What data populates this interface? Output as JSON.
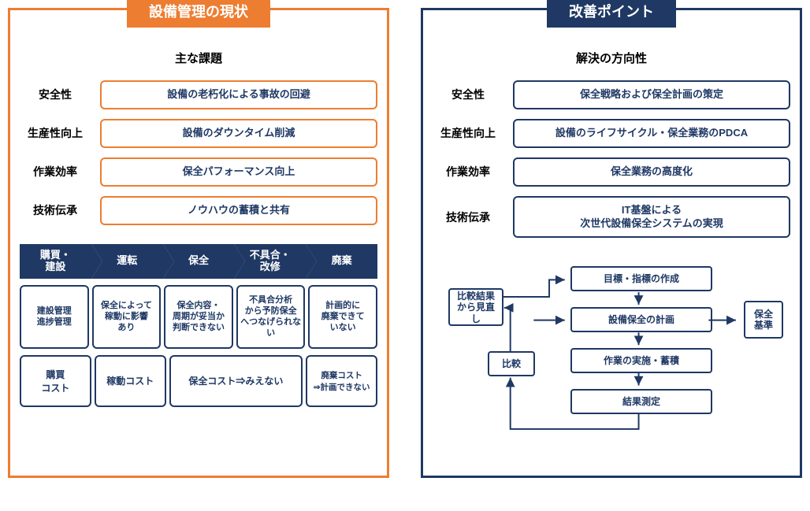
{
  "colors": {
    "orange": "#ed7d31",
    "navy": "#1f3864",
    "navy_border": "#203864",
    "box_border_navy": "#203864",
    "black": "#000000"
  },
  "left": {
    "title": "設備管理の現状",
    "section": "主な課題",
    "rows": [
      {
        "label": "安全性",
        "text": "設備の老朽化による事故の回避"
      },
      {
        "label": "生産性向上",
        "text": "設備のダウンタイム削減"
      },
      {
        "label": "作業効率",
        "text": "保全パフォーマンス向上"
      },
      {
        "label": "技術伝承",
        "text": "ノウハウの蓄積と共有"
      }
    ],
    "chevrons": [
      "購買・\n建設",
      "運転",
      "保全",
      "不具合・\n改修",
      "廃棄"
    ],
    "grid_row1": [
      "建設管理\n進捗管理",
      "保全によって\n稼動に影響\nあり",
      "保全内容・\n周期が妥当か\n判断できない",
      "不具合分析\nから予防保全\nへつなげられない",
      "計画的に\n廃棄できて\nいない"
    ],
    "grid_row2": [
      {
        "text": "購買\nコスト",
        "flex": 1
      },
      {
        "text": "稼動コスト",
        "flex": 1
      },
      {
        "text": "保全コスト⇒みえない",
        "flex": 2
      },
      {
        "text": "廃棄コスト\n⇒計画できない",
        "flex": 1
      }
    ]
  },
  "right": {
    "title": "改善ポイント",
    "section": "解決の方向性",
    "rows": [
      {
        "label": "安全性",
        "text": "保全戦略および保全計画の策定"
      },
      {
        "label": "生産性向上",
        "text": "設備のライフサイクル・保全業務のPDCA"
      },
      {
        "label": "作業効率",
        "text": "保全業務の高度化"
      },
      {
        "label": "技術伝承",
        "text": "IT基盤による\n次世代設備保全システムの実現"
      }
    ],
    "pdca": {
      "review": "比較結果\nから見直し",
      "compare": "比較",
      "steps": [
        "目標・指標の作成",
        "設備保全の計画",
        "作業の実施・蓄積",
        "結果測定"
      ],
      "standard": "保全\n基準"
    }
  }
}
